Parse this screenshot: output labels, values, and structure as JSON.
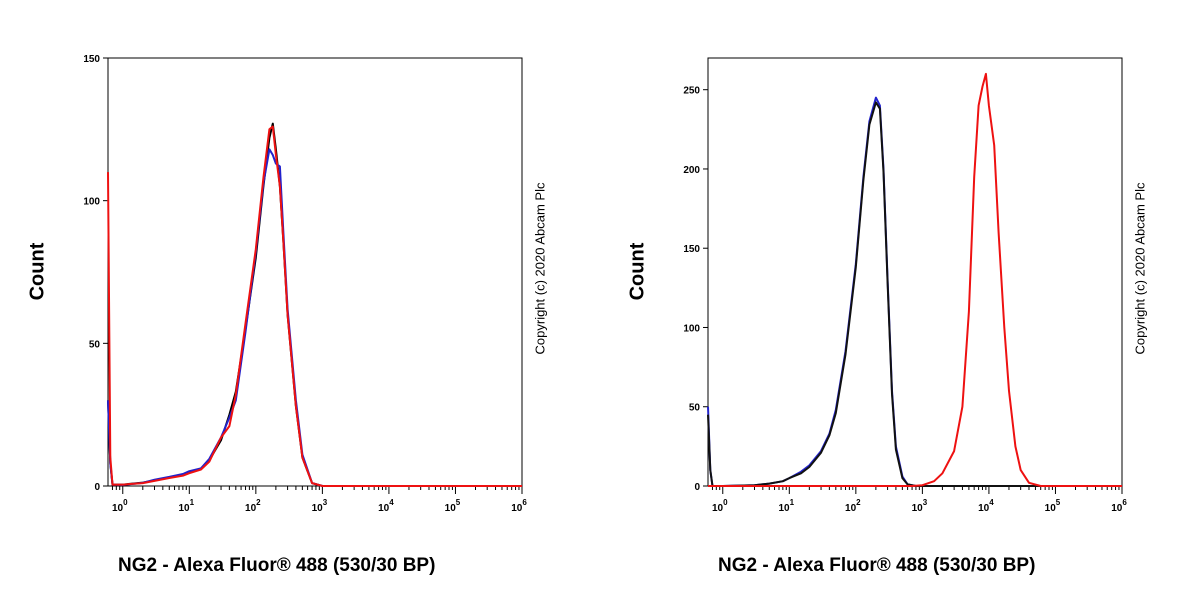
{
  "chart_data": [
    {
      "type": "line",
      "title": "",
      "xlabel": "NG2 -  Alexa Fluor® 488 (530/30 BP)",
      "ylabel": "Count",
      "x_scale": "log",
      "xlim": [
        0.6,
        1000000
      ],
      "ylim": [
        0,
        150
      ],
      "yticks": [
        "0",
        "50",
        "100",
        "150"
      ],
      "xticks": [
        {
          "base": "10",
          "exp": "0"
        },
        {
          "base": "10",
          "exp": "1"
        },
        {
          "base": "10",
          "exp": "2"
        },
        {
          "base": "10",
          "exp": "3"
        },
        {
          "base": "10",
          "exp": "4"
        },
        {
          "base": "10",
          "exp": "5"
        },
        {
          "base": "10",
          "exp": "6"
        }
      ],
      "annotation": "Copyright (c) 2020 Abcam Plc",
      "series": [
        {
          "color": "#000000",
          "x": [
            0.6,
            0.65,
            0.7,
            1,
            2,
            3,
            5,
            8,
            10,
            15,
            20,
            30,
            40,
            50,
            70,
            100,
            130,
            160,
            180,
            200,
            230,
            260,
            300,
            400,
            500,
            700,
            1000,
            100000,
            1000000
          ],
          "y": [
            30,
            8,
            0.5,
            0.5,
            1.2,
            2,
            3,
            4,
            5,
            6,
            9,
            16,
            25,
            33,
            55,
            80,
            105,
            122,
            127,
            118,
            105,
            85,
            60,
            28,
            10,
            1,
            0,
            0,
            0
          ]
        },
        {
          "color": "#2222cc",
          "x": [
            0.6,
            0.65,
            0.7,
            1,
            2,
            3,
            5,
            8,
            10,
            15,
            20,
            30,
            40,
            50,
            70,
            100,
            130,
            160,
            180,
            200,
            230,
            260,
            300,
            400,
            500,
            700,
            1000,
            100000,
            1000000
          ],
          "y": [
            30,
            8,
            0.5,
            0.4,
            1.1,
            2.2,
            3.2,
            4.2,
            5.2,
            6.2,
            9.5,
            17,
            24,
            30,
            54,
            82,
            106,
            118,
            116,
            113,
            112,
            88,
            62,
            30,
            11,
            1,
            0,
            0,
            0
          ]
        },
        {
          "color": "#ee1111",
          "x": [
            0.6,
            0.65,
            0.7,
            1,
            2,
            3,
            5,
            8,
            10,
            15,
            20,
            30,
            40,
            50,
            70,
            100,
            130,
            160,
            180,
            200,
            230,
            260,
            300,
            400,
            500,
            700,
            1000,
            100000,
            1000000
          ],
          "y": [
            110,
            10,
            0.5,
            0.5,
            1,
            1.8,
            2.8,
            3.6,
            4.5,
            5.8,
            8.5,
            17,
            21,
            32,
            57,
            83,
            108,
            125,
            126,
            116,
            105,
            85,
            60,
            28,
            10,
            1,
            0,
            0,
            0
          ]
        }
      ]
    },
    {
      "type": "line",
      "title": "",
      "xlabel": "NG2 -  Alexa Fluor® 488 (530/30 BP)",
      "ylabel": "Count",
      "x_scale": "log",
      "xlim": [
        0.6,
        1000000
      ],
      "ylim": [
        0,
        270
      ],
      "yticks": [
        "0",
        "50",
        "100",
        "150",
        "200",
        "250"
      ],
      "xticks": [
        {
          "base": "10",
          "exp": "0"
        },
        {
          "base": "10",
          "exp": "1"
        },
        {
          "base": "10",
          "exp": "2"
        },
        {
          "base": "10",
          "exp": "3"
        },
        {
          "base": "10",
          "exp": "4"
        },
        {
          "base": "10",
          "exp": "5"
        },
        {
          "base": "10",
          "exp": "6"
        }
      ],
      "annotation": "Copyright (c) 2020 Abcam Plc",
      "series": [
        {
          "color": "#2222cc",
          "x": [
            0.6,
            0.65,
            0.7,
            1,
            3,
            5,
            8,
            10,
            15,
            20,
            30,
            40,
            50,
            70,
            100,
            130,
            160,
            200,
            230,
            260,
            300,
            350,
            400,
            500,
            600,
            800,
            1000000
          ],
          "y": [
            50,
            10,
            0,
            0,
            0.5,
            1.5,
            3,
            5,
            9,
            13,
            22,
            33,
            48,
            85,
            140,
            195,
            230,
            245,
            240,
            200,
            130,
            60,
            25,
            6,
            1,
            0,
            0
          ]
        },
        {
          "color": "#111111",
          "x": [
            0.6,
            0.65,
            0.7,
            1,
            3,
            5,
            8,
            10,
            15,
            20,
            30,
            40,
            50,
            70,
            100,
            130,
            160,
            200,
            230,
            260,
            300,
            350,
            400,
            500,
            600,
            800,
            1000000
          ],
          "y": [
            45,
            10,
            0,
            0,
            0.5,
            1.5,
            3,
            5,
            8,
            12,
            21,
            32,
            46,
            83,
            138,
            193,
            228,
            242,
            238,
            198,
            128,
            58,
            23,
            5,
            1,
            0,
            0
          ]
        },
        {
          "color": "#ee1111",
          "x": [
            0.6,
            700,
            1000,
            1500,
            2000,
            3000,
            4000,
            5000,
            6000,
            7000,
            8000,
            9000,
            10000,
            12000,
            14000,
            17000,
            20000,
            25000,
            30000,
            40000,
            60000,
            1000000
          ],
          "y": [
            0,
            0,
            0.5,
            3,
            8,
            22,
            50,
            110,
            195,
            240,
            252,
            260,
            240,
            215,
            160,
            100,
            60,
            25,
            10,
            2,
            0,
            0
          ]
        }
      ]
    }
  ]
}
